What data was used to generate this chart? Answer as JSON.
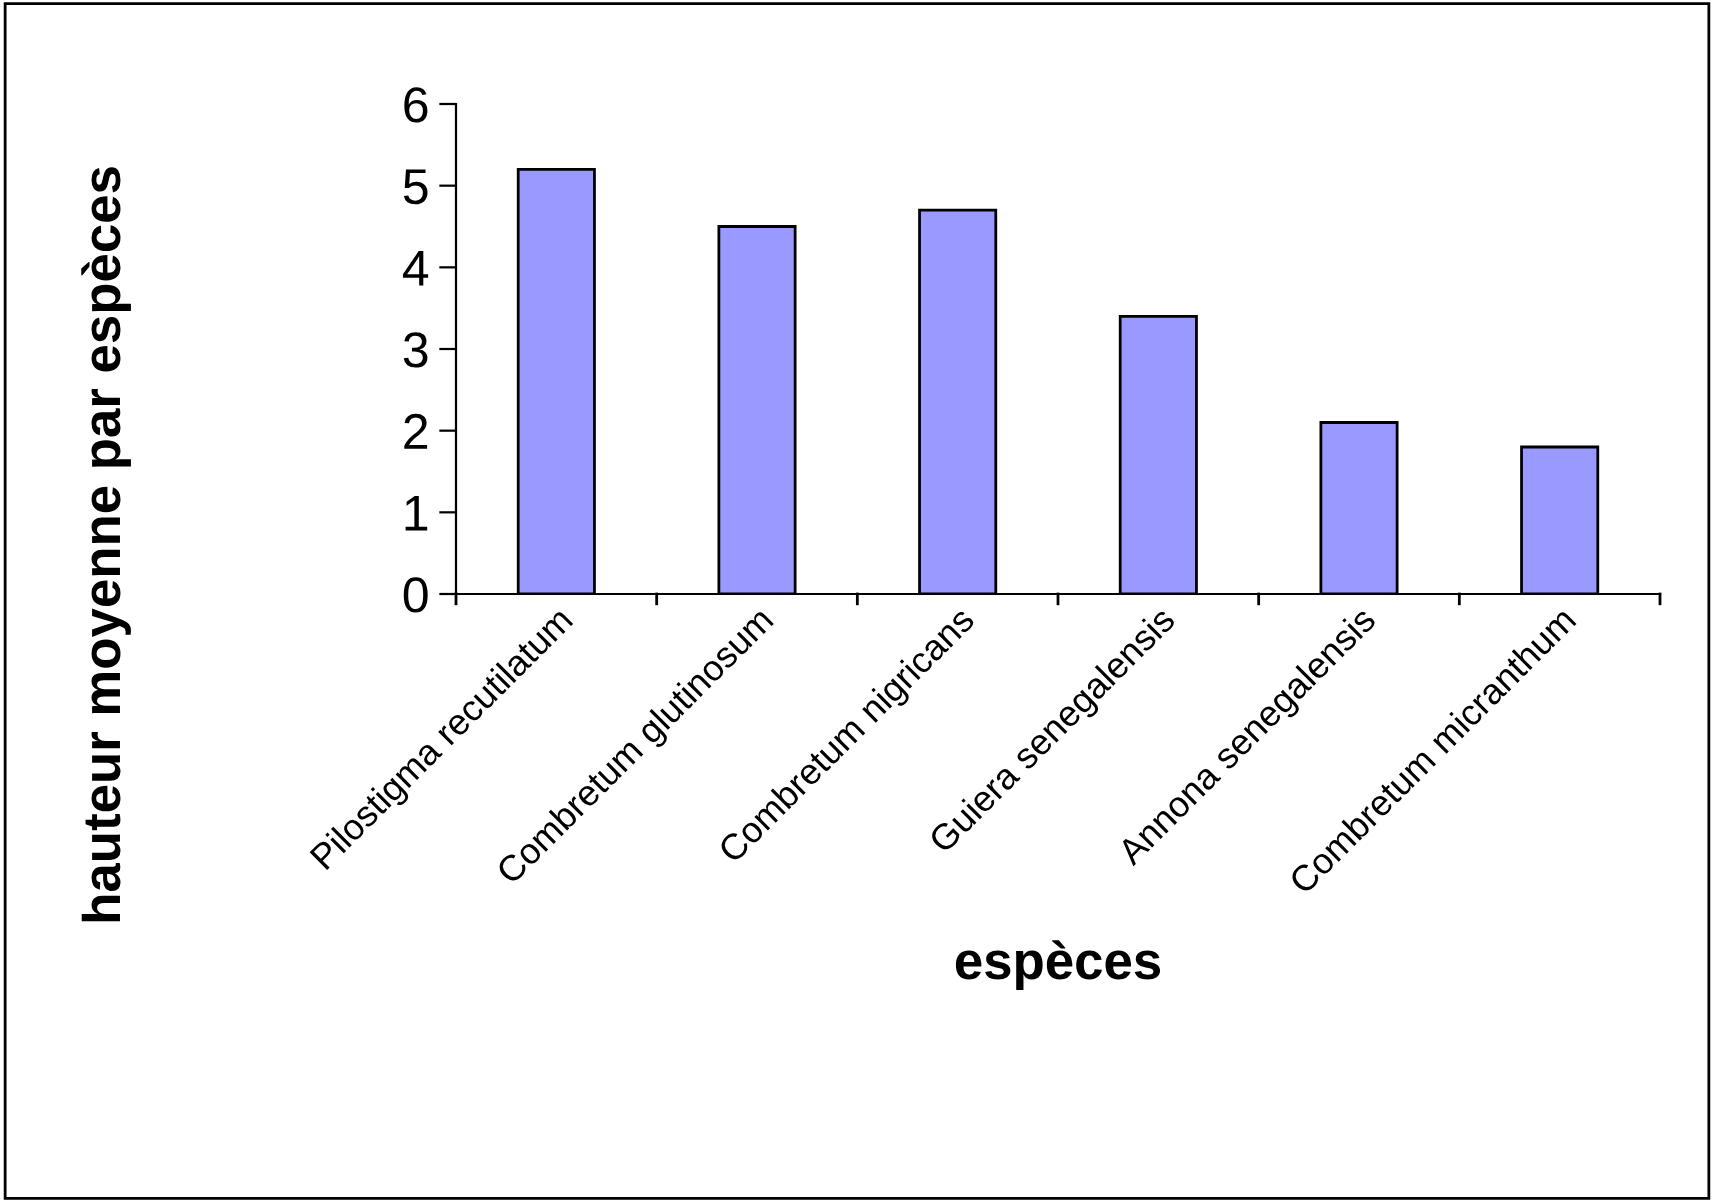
{
  "chart_data": {
    "type": "bar",
    "xlabel": "espèces",
    "ylabel": "hauteur moyenne par espèces",
    "categories": [
      "Pilostigma recutilatum",
      "Combretum glutinosum",
      "Combretum nigricans",
      "Guiera senegalensis",
      "Annona senegalensis",
      "Combretum micranthum"
    ],
    "values": [
      5.2,
      4.5,
      4.7,
      3.4,
      2.1,
      1.8
    ],
    "color": "#9999ff",
    "ylim": [
      0,
      6
    ],
    "yticks": [
      0,
      1,
      2,
      3,
      4,
      5,
      6
    ],
    "grid": false,
    "legend": false
  }
}
